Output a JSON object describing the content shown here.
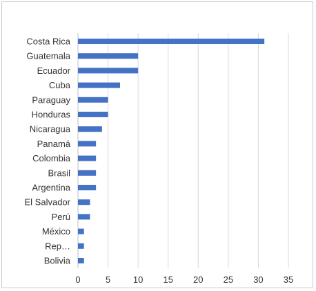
{
  "chart_data": {
    "type": "bar",
    "orientation": "horizontal",
    "categories": [
      "Costa Rica",
      "Guatemala",
      "Ecuador",
      "Cuba",
      "Paraguay",
      "Honduras",
      "Nicaragua",
      "Panamá",
      "Colombia",
      "Brasil",
      "Argentina",
      "El Salvador",
      "Perú",
      "México",
      "Rep…",
      "Bolivia"
    ],
    "values": [
      31,
      10,
      10,
      7,
      5,
      5,
      4,
      3,
      3,
      3,
      3,
      2,
      2,
      1,
      1,
      1
    ],
    "x_ticks": [
      "0",
      "5",
      "10",
      "15",
      "20",
      "25",
      "30",
      "35"
    ],
    "xlim": [
      0,
      35
    ],
    "grid": "vertical",
    "legend": "none",
    "bar_color": "#4472c4",
    "grid_color": "#d9d9d9"
  }
}
